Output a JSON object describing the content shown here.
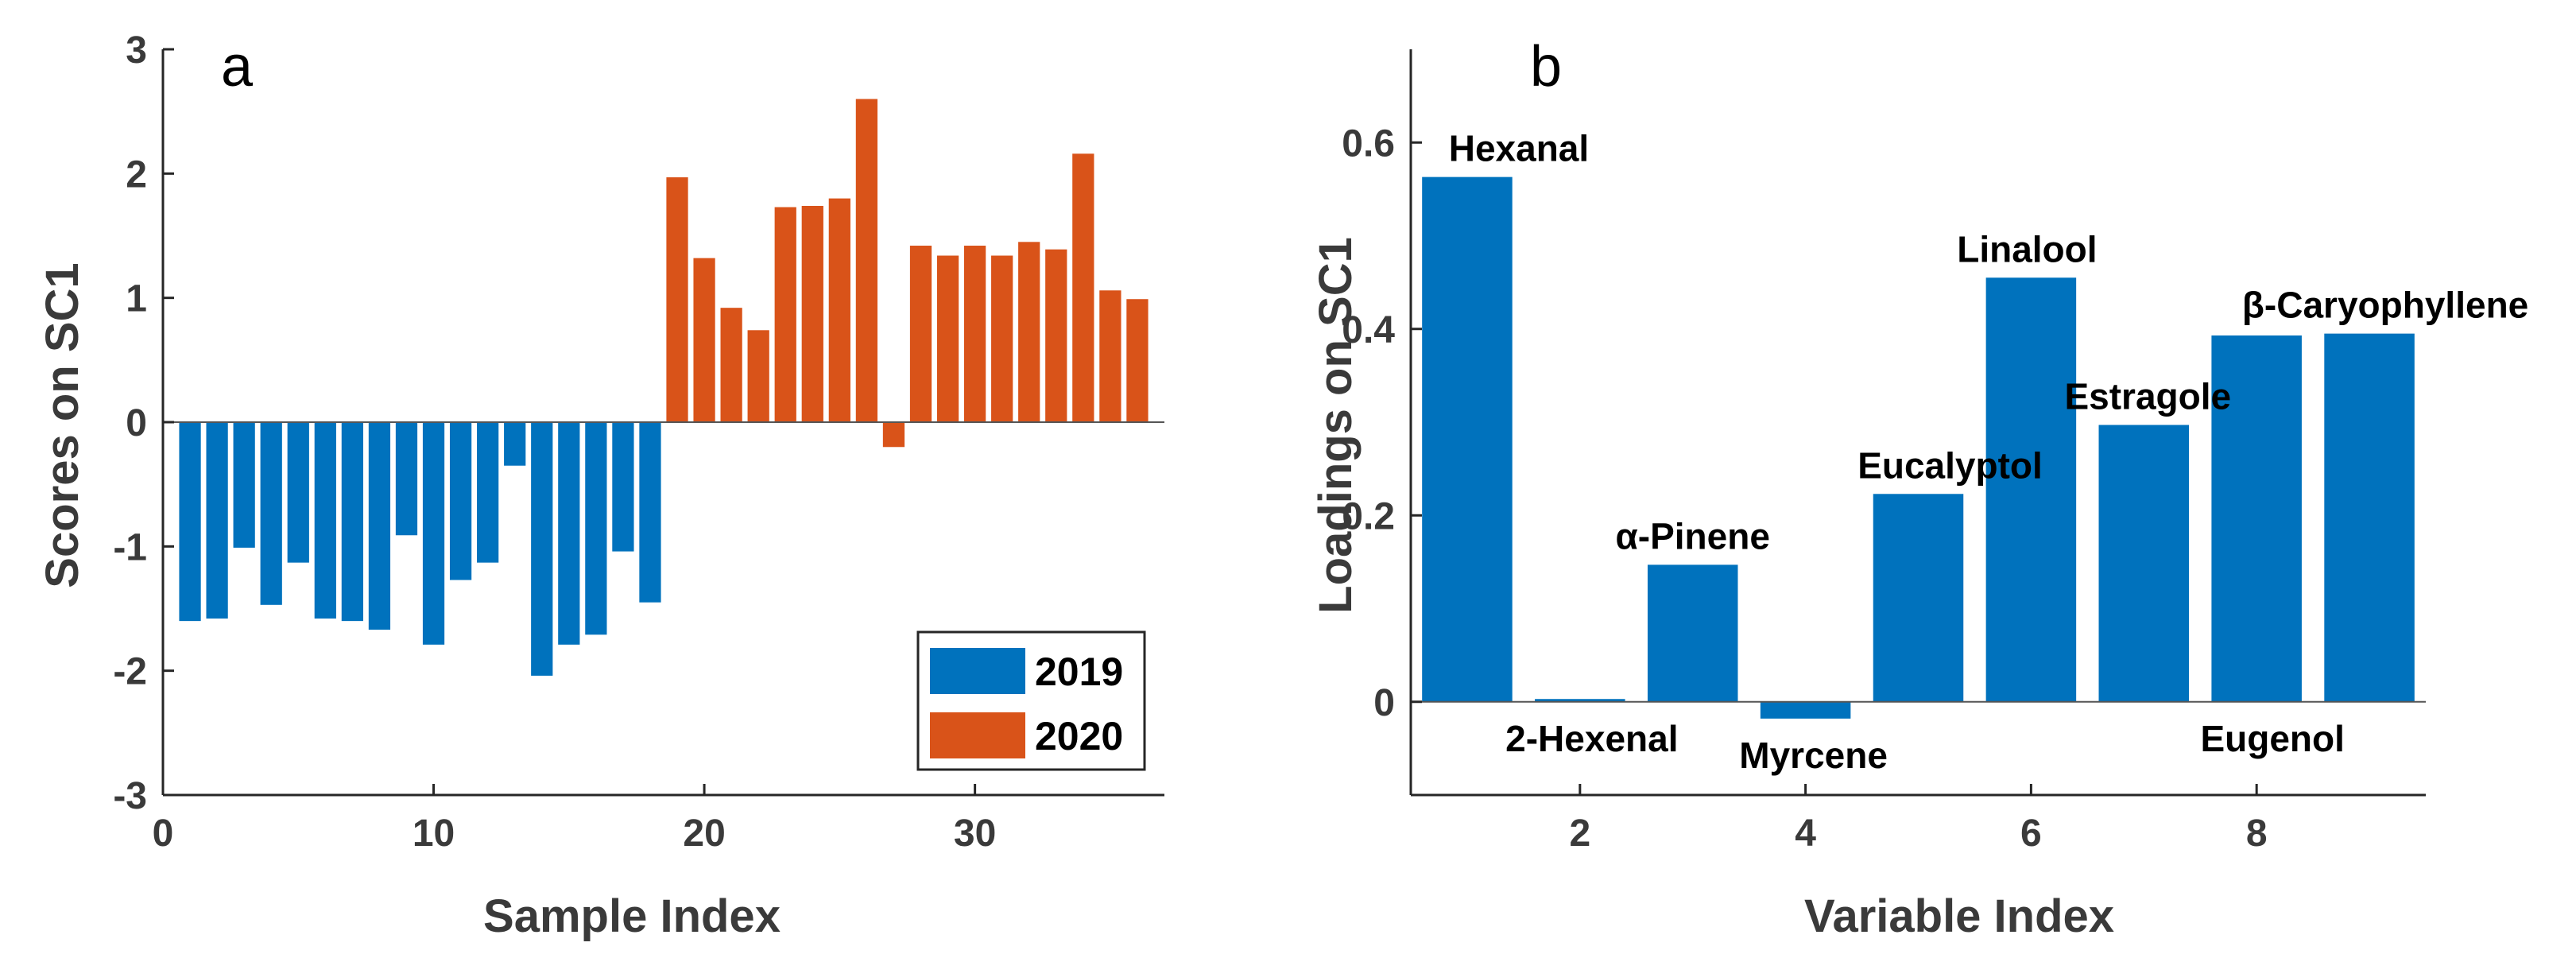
{
  "chart_data": [
    {
      "type": "bar",
      "panel_label": "a",
      "xlabel": "Sample Index",
      "ylabel": "Scores on SC1",
      "xlim": [
        0,
        37
      ],
      "ylim": [
        -3,
        3
      ],
      "xticks": [
        0,
        10,
        20,
        30
      ],
      "yticks": [
        -3,
        -2,
        -1,
        0,
        1,
        2,
        3
      ],
      "legend_position": "bottom-right",
      "series": [
        {
          "name": "2019",
          "color": "#0072BD",
          "x": [
            1,
            2,
            3,
            4,
            5,
            6,
            7,
            8,
            9,
            10,
            11,
            12,
            13,
            14,
            15,
            16,
            17,
            18
          ],
          "values": [
            -1.6,
            -1.58,
            -1.01,
            -1.47,
            -1.13,
            -1.58,
            -1.6,
            -1.67,
            -0.91,
            -1.79,
            -1.27,
            -1.13,
            -0.35,
            -2.04,
            -1.79,
            -1.71,
            -1.04,
            -1.45
          ]
        },
        {
          "name": "2020",
          "color": "#D95319",
          "x": [
            19,
            20,
            21,
            22,
            23,
            24,
            25,
            26,
            27,
            28,
            29,
            30,
            31,
            32,
            33,
            34,
            35,
            36
          ],
          "values": [
            1.97,
            1.32,
            0.92,
            0.74,
            1.73,
            1.74,
            1.8,
            2.6,
            -0.2,
            1.42,
            1.34,
            1.42,
            1.34,
            1.45,
            1.39,
            2.16,
            1.06,
            0.99
          ]
        }
      ]
    },
    {
      "type": "bar",
      "panel_label": "b",
      "xlabel": "Variable Index",
      "ylabel": "Loadings on SC1",
      "xlim": [
        0.5,
        9.5
      ],
      "ylim": [
        -0.1,
        0.7
      ],
      "xticks": [
        2,
        4,
        6,
        8
      ],
      "yticks": [
        0,
        0.2,
        0.4,
        0.6
      ],
      "color": "#0072BD",
      "x": [
        1,
        2,
        3,
        4,
        5,
        6,
        7,
        8,
        9
      ],
      "values": [
        0.563,
        0.003,
        0.147,
        -0.018,
        0.223,
        0.455,
        0.297,
        0.393,
        0.395
      ],
      "annotations": [
        "Hexanal",
        "2-Hexenal",
        "α-Pinene",
        "Myrcene",
        "Eucalyptol",
        "Linalool",
        "Estragole",
        "Eugenol",
        "β-Caryophyllene"
      ]
    }
  ]
}
